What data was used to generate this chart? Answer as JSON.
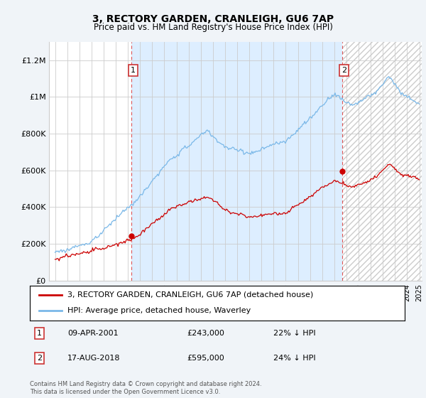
{
  "title": "3, RECTORY GARDEN, CRANLEIGH, GU6 7AP",
  "subtitle": "Price paid vs. HM Land Registry's House Price Index (HPI)",
  "legend_line1": "3, RECTORY GARDEN, CRANLEIGH, GU6 7AP (detached house)",
  "legend_line2": "HPI: Average price, detached house, Waverley",
  "sale1_date": "09-APR-2001",
  "sale1_price": "£243,000",
  "sale1_hpi": "22% ↓ HPI",
  "sale1_year": 2001.29,
  "sale1_price_val": 243000,
  "sale2_date": "17-AUG-2018",
  "sale2_price": "£595,000",
  "sale2_hpi": "24% ↓ HPI",
  "sale2_year": 2018.63,
  "sale2_price_val": 595000,
  "footnote": "Contains HM Land Registry data © Crown copyright and database right 2024.\nThis data is licensed under the Open Government Licence v3.0.",
  "hpi_color": "#7ab8e8",
  "price_color": "#cc0000",
  "marker_color": "#cc0000",
  "bg_color": "#f0f4f8",
  "plot_bg": "#ffffff",
  "grid_color": "#cccccc",
  "shade_color": "#ddeeff",
  "ylim": [
    0,
    1300000
  ],
  "yticks": [
    0,
    200000,
    400000,
    600000,
    800000,
    1000000,
    1200000
  ],
  "ytick_labels": [
    "£0",
    "£200K",
    "£400K",
    "£600K",
    "£800K",
    "£1M",
    "£1.2M"
  ],
  "xmin": 1995,
  "xmax": 2025
}
